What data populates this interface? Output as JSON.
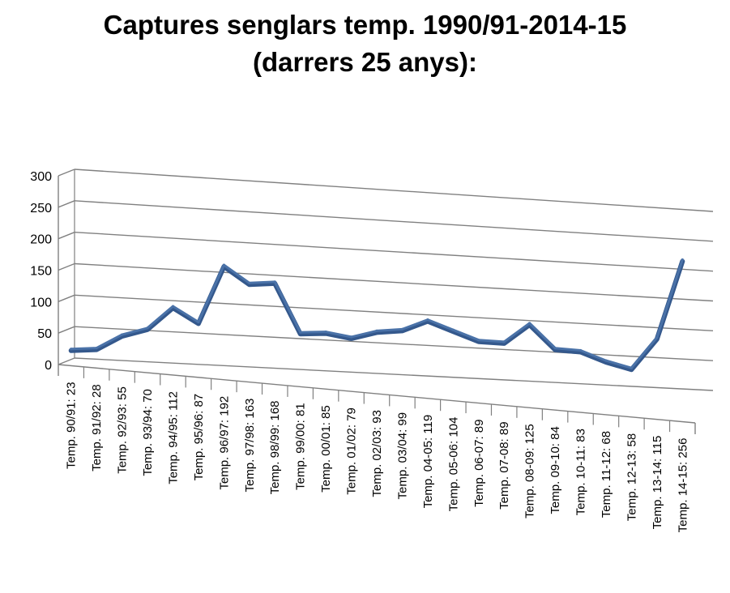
{
  "chart_data": {
    "type": "line",
    "title": [
      "Captures senglars temp. 1990/91-2014-15",
      "(darrers 25 anys):"
    ],
    "xlabel": "",
    "ylabel": "",
    "ylim": [
      0,
      300
    ],
    "yticks": [
      "0",
      "50",
      "100",
      "150",
      "200",
      "250",
      "300"
    ],
    "grid": true,
    "legend": "none",
    "categories": [
      "Temp. 90/91: 23",
      "Temp. 91/92: 28",
      "Temp. 92/93: 55",
      "Temp. 93/94: 70",
      "Temp. 94/95: 112",
      "Temp. 95/96: 87",
      "Temp. 96/97: 192",
      "Temp. 97/98: 163",
      "Temp. 98/99: 168",
      "Temp. 99/00: 81",
      "Temp. 00/01: 85",
      "Temp. 01/02: 79",
      "Temp. 02/03: 93",
      "Temp. 03/04: 99",
      "Temp. 04-05: 119",
      "Temp. 05-06: 104",
      "Temp. 06-07: 89",
      "Temp. 07-08: 89",
      "Temp. 08-09: 125",
      "Temp. 09-10: 84",
      "Temp. 10-11: 83",
      "Temp. 11-12: 68",
      "Temp. 12-13: 58",
      "Temp. 13-14: 115",
      "Temp. 14-15: 256"
    ],
    "series": [
      {
        "values": [
          23,
          28,
          55,
          70,
          112,
          87,
          192,
          163,
          168,
          81,
          85,
          79,
          93,
          99,
          119,
          104,
          89,
          89,
          125,
          84,
          83,
          68,
          58,
          115,
          256
        ]
      }
    ],
    "colors": {
      "line": "#4a72a8",
      "line_dark": "#34588c",
      "grid": "#808080"
    }
  }
}
